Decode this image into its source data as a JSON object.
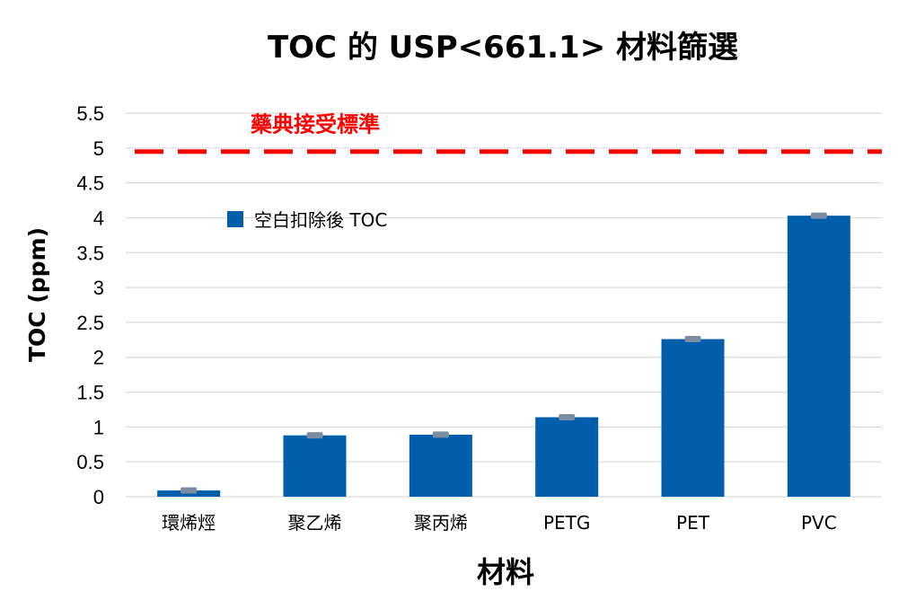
{
  "chart_data": {
    "type": "bar",
    "title": "TOC 的 USP<661.1> 材料篩選",
    "xlabel": "材料",
    "ylabel": "TOC (ppm)",
    "ylim": [
      0,
      5.5
    ],
    "yticks": [
      0,
      0.5,
      1,
      1.5,
      2,
      2.5,
      3,
      3.5,
      4,
      4.5,
      5,
      5.5
    ],
    "ytick_labels": [
      "0",
      "0.5",
      "1",
      "1.5",
      "2",
      "2.5",
      "3",
      "3.5",
      "4",
      "4.5",
      "5",
      "5.5"
    ],
    "categories": [
      "環烯烴",
      "聚乙烯",
      "聚丙烯",
      "PETG",
      "PET",
      "PVC"
    ],
    "series": [
      {
        "name": "空白扣除後 TOC",
        "values": [
          0.09,
          0.88,
          0.89,
          1.14,
          2.26,
          4.03
        ],
        "color": "#005eab"
      }
    ],
    "reference_line": {
      "label": "藥典接受標準",
      "value": 4.95,
      "color": "#ff0000",
      "style": "dashed"
    },
    "error_cap_color": "#7d8ca3",
    "grid": true,
    "grid_color": "#d9d9d9",
    "legend_position": "top-left inside plot"
  }
}
